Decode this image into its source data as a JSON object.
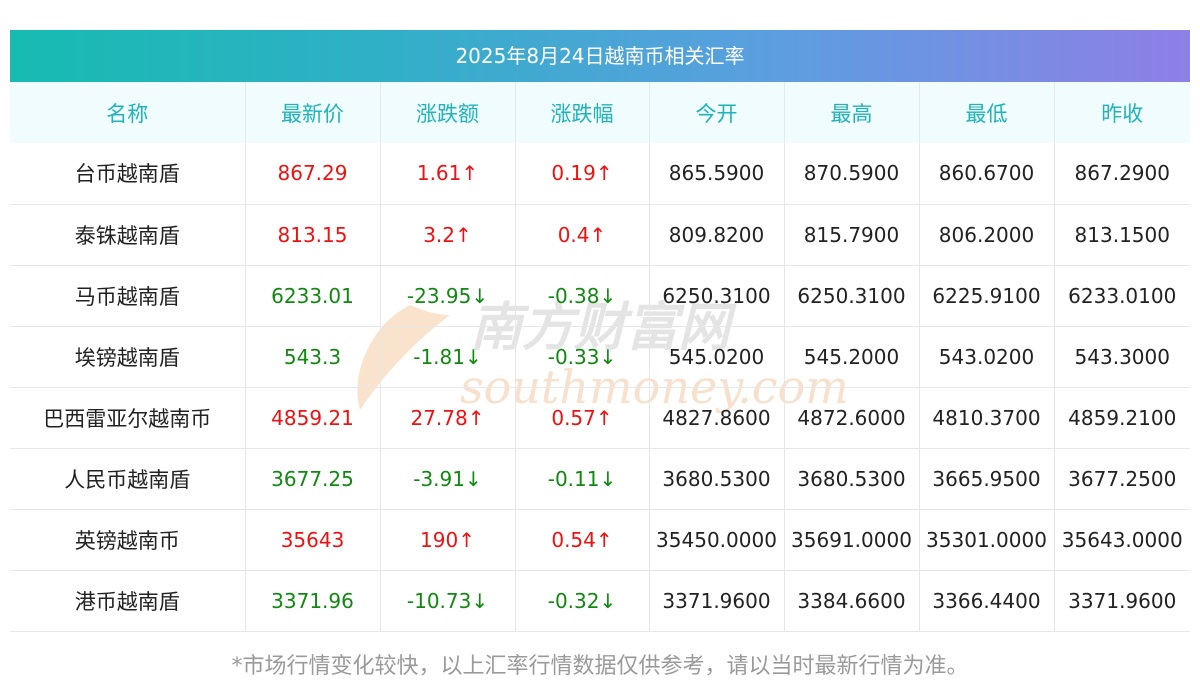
{
  "title": "2025年8月24日越南币相关汇率",
  "columns": [
    "名称",
    "最新价",
    "涨跌额",
    "涨跌幅",
    "今开",
    "最高",
    "最低",
    "昨收"
  ],
  "rows": [
    {
      "name": "台币越南盾",
      "price": "867.29",
      "change": "1.61↑",
      "pct": "0.19↑",
      "open": "865.5900",
      "high": "870.5900",
      "low": "860.6700",
      "prev": "867.2900",
      "dir": "up"
    },
    {
      "name": "泰铢越南盾",
      "price": "813.15",
      "change": "3.2↑",
      "pct": "0.4↑",
      "open": "809.8200",
      "high": "815.7900",
      "low": "806.2000",
      "prev": "813.1500",
      "dir": "up"
    },
    {
      "name": "马币越南盾",
      "price": "6233.01",
      "change": "-23.95↓",
      "pct": "-0.38↓",
      "open": "6250.3100",
      "high": "6250.3100",
      "low": "6225.9100",
      "prev": "6233.0100",
      "dir": "down"
    },
    {
      "name": "埃镑越南盾",
      "price": "543.3",
      "change": "-1.81↓",
      "pct": "-0.33↓",
      "open": "545.0200",
      "high": "545.2000",
      "low": "543.0200",
      "prev": "543.3000",
      "dir": "down"
    },
    {
      "name": "巴西雷亚尔越南币",
      "price": "4859.21",
      "change": "27.78↑",
      "pct": "0.57↑",
      "open": "4827.8600",
      "high": "4872.6000",
      "low": "4810.3700",
      "prev": "4859.2100",
      "dir": "up"
    },
    {
      "name": "人民币越南盾",
      "price": "3677.25",
      "change": "-3.91↓",
      "pct": "-0.11↓",
      "open": "3680.5300",
      "high": "3680.5300",
      "low": "3665.9500",
      "prev": "3677.2500",
      "dir": "down"
    },
    {
      "name": "英镑越南币",
      "price": "35643",
      "change": "190↑",
      "pct": "0.54↑",
      "open": "35450.0000",
      "high": "35691.0000",
      "low": "35301.0000",
      "prev": "35643.0000",
      "dir": "up"
    },
    {
      "name": "港币越南盾",
      "price": "3371.96",
      "change": "-10.73↓",
      "pct": "-0.32↓",
      "open": "3371.9600",
      "high": "3384.6600",
      "low": "3366.4400",
      "prev": "3371.9600",
      "dir": "down"
    }
  ],
  "watermark": {
    "cn": "南方财富网",
    "en": "southmoney.com"
  },
  "footnote": "*市场行情变化较快，以上汇率行情数据仅供参考，请以当时最新行情为准。",
  "colors": {
    "up": "#ee1111",
    "down": "#118811",
    "header_text": "#1fb3bb"
  }
}
